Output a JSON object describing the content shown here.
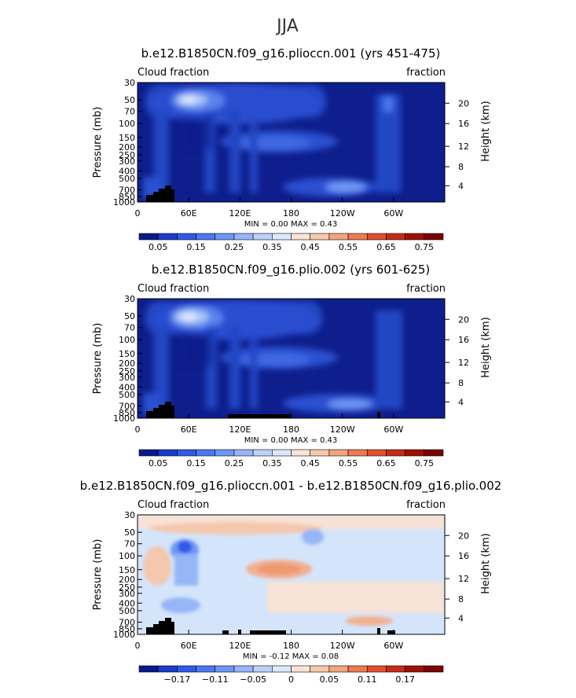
{
  "page_title": "JJA",
  "colors": {
    "plot_background": "#0e1e8c",
    "land_mask": "#000000",
    "diff_background": "#d4e4fa"
  },
  "chart_data": [
    {
      "type": "heatmap",
      "title": "b.e12.B1850CN.f09_g16.plioccn.001 (yrs 451-475)",
      "left_label": "Cloud fraction",
      "right_label": "fraction",
      "ylabel": "Pressure (mb)",
      "ylabel_right": "Height (km)",
      "pressure_ticks": [
        "30",
        "50",
        "70",
        "100",
        "150",
        "200",
        "250",
        "300",
        "400",
        "500",
        "700",
        "850",
        "1000"
      ],
      "height_ticks": [
        "20",
        "16",
        "12",
        "8",
        "4"
      ],
      "x_ticks": [
        "0",
        "60E",
        "120E",
        "180",
        "120W",
        "60W"
      ],
      "min_max": "MIN =    0.00   MAX =    0.43",
      "colorbar_labels": [
        "0.05",
        "0.15",
        "0.25",
        "0.35",
        "0.45",
        "0.55",
        "0.65",
        "0.75"
      ],
      "colorbar_colors": [
        "#0a1a8c",
        "#1a3cc8",
        "#2e5ae6",
        "#4a78f0",
        "#6e96f4",
        "#96b6f8",
        "#bcd2fa",
        "#dde8fc",
        "#f8e4d8",
        "#f8c8ae",
        "#f4a47e",
        "#ee7a50",
        "#e0502e",
        "#c42c16",
        "#a01008",
        "#780402"
      ]
    },
    {
      "type": "heatmap",
      "title": "b.e12.B1850CN.f09_g16.plio.002 (yrs 601-625)",
      "left_label": "Cloud fraction",
      "right_label": "fraction",
      "ylabel": "Pressure (mb)",
      "ylabel_right": "Height (km)",
      "pressure_ticks": [
        "30",
        "50",
        "70",
        "100",
        "150",
        "200",
        "250",
        "300",
        "400",
        "500",
        "700",
        "850",
        "1000"
      ],
      "height_ticks": [
        "20",
        "16",
        "12",
        "8",
        "4"
      ],
      "x_ticks": [
        "0",
        "60E",
        "120E",
        "180",
        "120W",
        "60W"
      ],
      "min_max": "MIN =    0.00   MAX =    0.43",
      "colorbar_labels": [
        "0.05",
        "0.15",
        "0.25",
        "0.35",
        "0.45",
        "0.55",
        "0.65",
        "0.75"
      ],
      "colorbar_colors": [
        "#0a1a8c",
        "#1a3cc8",
        "#2e5ae6",
        "#4a78f0",
        "#6e96f4",
        "#96b6f8",
        "#bcd2fa",
        "#dde8fc",
        "#f8e4d8",
        "#f8c8ae",
        "#f4a47e",
        "#ee7a50",
        "#e0502e",
        "#c42c16",
        "#a01008",
        "#780402"
      ]
    },
    {
      "type": "heatmap",
      "title": "b.e12.B1850CN.f09_g16.plioccn.001 - b.e12.B1850CN.f09_g16.plio.002",
      "left_label": "Cloud fraction",
      "right_label": "fraction",
      "ylabel": "Pressure (mb)",
      "ylabel_right": "Height (km)",
      "pressure_ticks": [
        "30",
        "50",
        "70",
        "100",
        "150",
        "200",
        "250",
        "300",
        "400",
        "500",
        "700",
        "850",
        "1000"
      ],
      "height_ticks": [
        "20",
        "16",
        "12",
        "8",
        "4"
      ],
      "x_ticks": [
        "0",
        "60E",
        "120E",
        "180",
        "120W",
        "60W"
      ],
      "min_max": "MIN =   -0.12   MAX =    0.08",
      "colorbar_labels": [
        "−0.17",
        "−0.11",
        "−0.05",
        "0",
        "0.05",
        "0.11",
        "0.17"
      ],
      "colorbar_colors": [
        "#0a1a8c",
        "#1a3cc8",
        "#2e5ae6",
        "#4a78f0",
        "#6e96f4",
        "#96b6f8",
        "#bcd2fa",
        "#dde8fc",
        "#f8e4d8",
        "#f8c8ae",
        "#f4a47e",
        "#ee7a50",
        "#e0502e",
        "#c42c16",
        "#a01008",
        "#780402"
      ]
    }
  ]
}
